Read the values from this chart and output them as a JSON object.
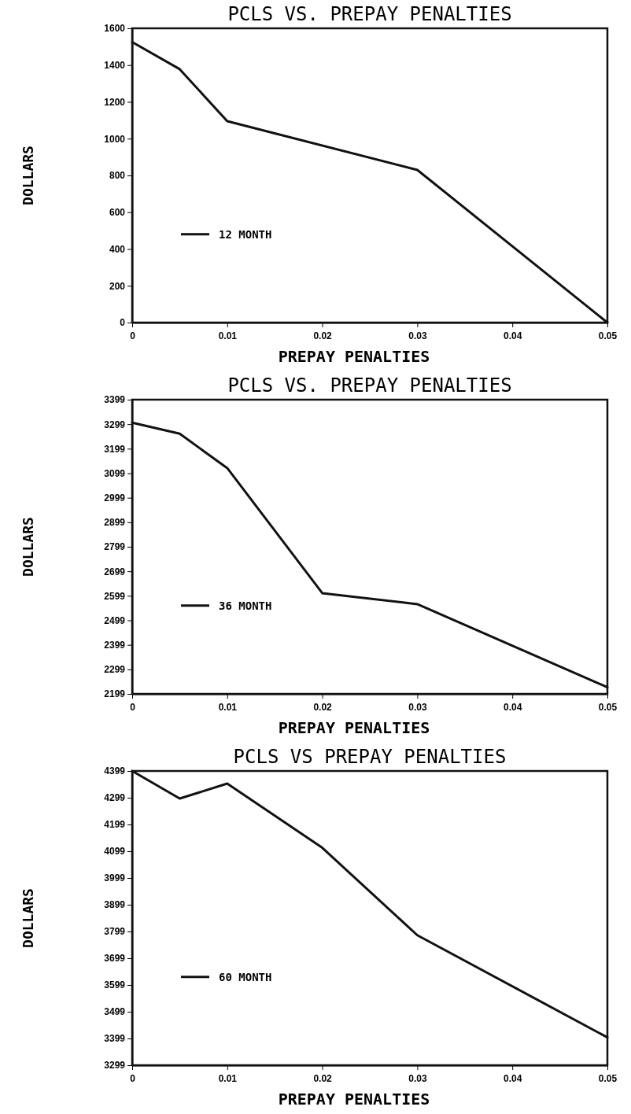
{
  "chart_data": [
    {
      "type": "line",
      "title": "PCLS VS. PREPAY PENALTIES",
      "xlabel": "PREPAY PENALTIES",
      "ylabel": "DOLLARS",
      "x": [
        0,
        0.005,
        0.01,
        0.03,
        0.05
      ],
      "series": [
        {
          "name": "12 MONTH",
          "color": "#111111",
          "values": [
            1525,
            1378,
            1095,
            830,
            0
          ]
        }
      ],
      "xlim": [
        0,
        0.05
      ],
      "xticks": [
        0,
        0.01,
        0.02,
        0.03,
        0.04,
        0.05
      ],
      "ylim": [
        0,
        1600
      ],
      "yticks": [
        0,
        200,
        400,
        600,
        800,
        1000,
        1200,
        1400,
        1600
      ],
      "legend": "bottom left",
      "marker": "none",
      "line_style": "solid",
      "grid": false
    },
    {
      "type": "line",
      "title": "PCLS VS. PREPAY PENALTIES",
      "xlabel": "PREPAY PENALTIES",
      "ylabel": "DOLLARS",
      "x": [
        0,
        0.005,
        0.01,
        0.02,
        0.03,
        0.05
      ],
      "series": [
        {
          "name": "36 MONTH",
          "color": "#111111",
          "values": [
            3305,
            3260,
            3120,
            2610,
            2565,
            2226
          ]
        }
      ],
      "xlim": [
        0,
        0.05
      ],
      "xticks": [
        0,
        0.01,
        0.02,
        0.03,
        0.04,
        0.05
      ],
      "ylim": [
        2199,
        3399
      ],
      "yticks": [
        2199,
        2299,
        2399,
        2499,
        2599,
        2699,
        2799,
        2899,
        2999,
        3099,
        3199,
        3299,
        3399
      ],
      "legend": "bottom left",
      "marker": "none",
      "line_style": "solid",
      "grid": false
    },
    {
      "type": "line",
      "title": "PCLS VS PREPAY PENALTIES",
      "xlabel": "PREPAY PENALTIES",
      "ylabel": "DOLLARS",
      "x": [
        0,
        0.005,
        0.01,
        0.02,
        0.03,
        0.05
      ],
      "series": [
        {
          "name": "60 MONTH",
          "color": "#111111",
          "values": [
            4399,
            4296,
            4352,
            4112,
            3785,
            3403
          ]
        }
      ],
      "xlim": [
        0,
        0.05
      ],
      "xticks": [
        0,
        0.01,
        0.02,
        0.03,
        0.04,
        0.05
      ],
      "ylim": [
        3299,
        4399
      ],
      "yticks": [
        3299,
        3399,
        3499,
        3599,
        3699,
        3799,
        3899,
        3999,
        4099,
        4199,
        4299,
        4399
      ],
      "legend": "bottom left",
      "marker": "none",
      "line_style": "solid",
      "grid": false
    }
  ]
}
